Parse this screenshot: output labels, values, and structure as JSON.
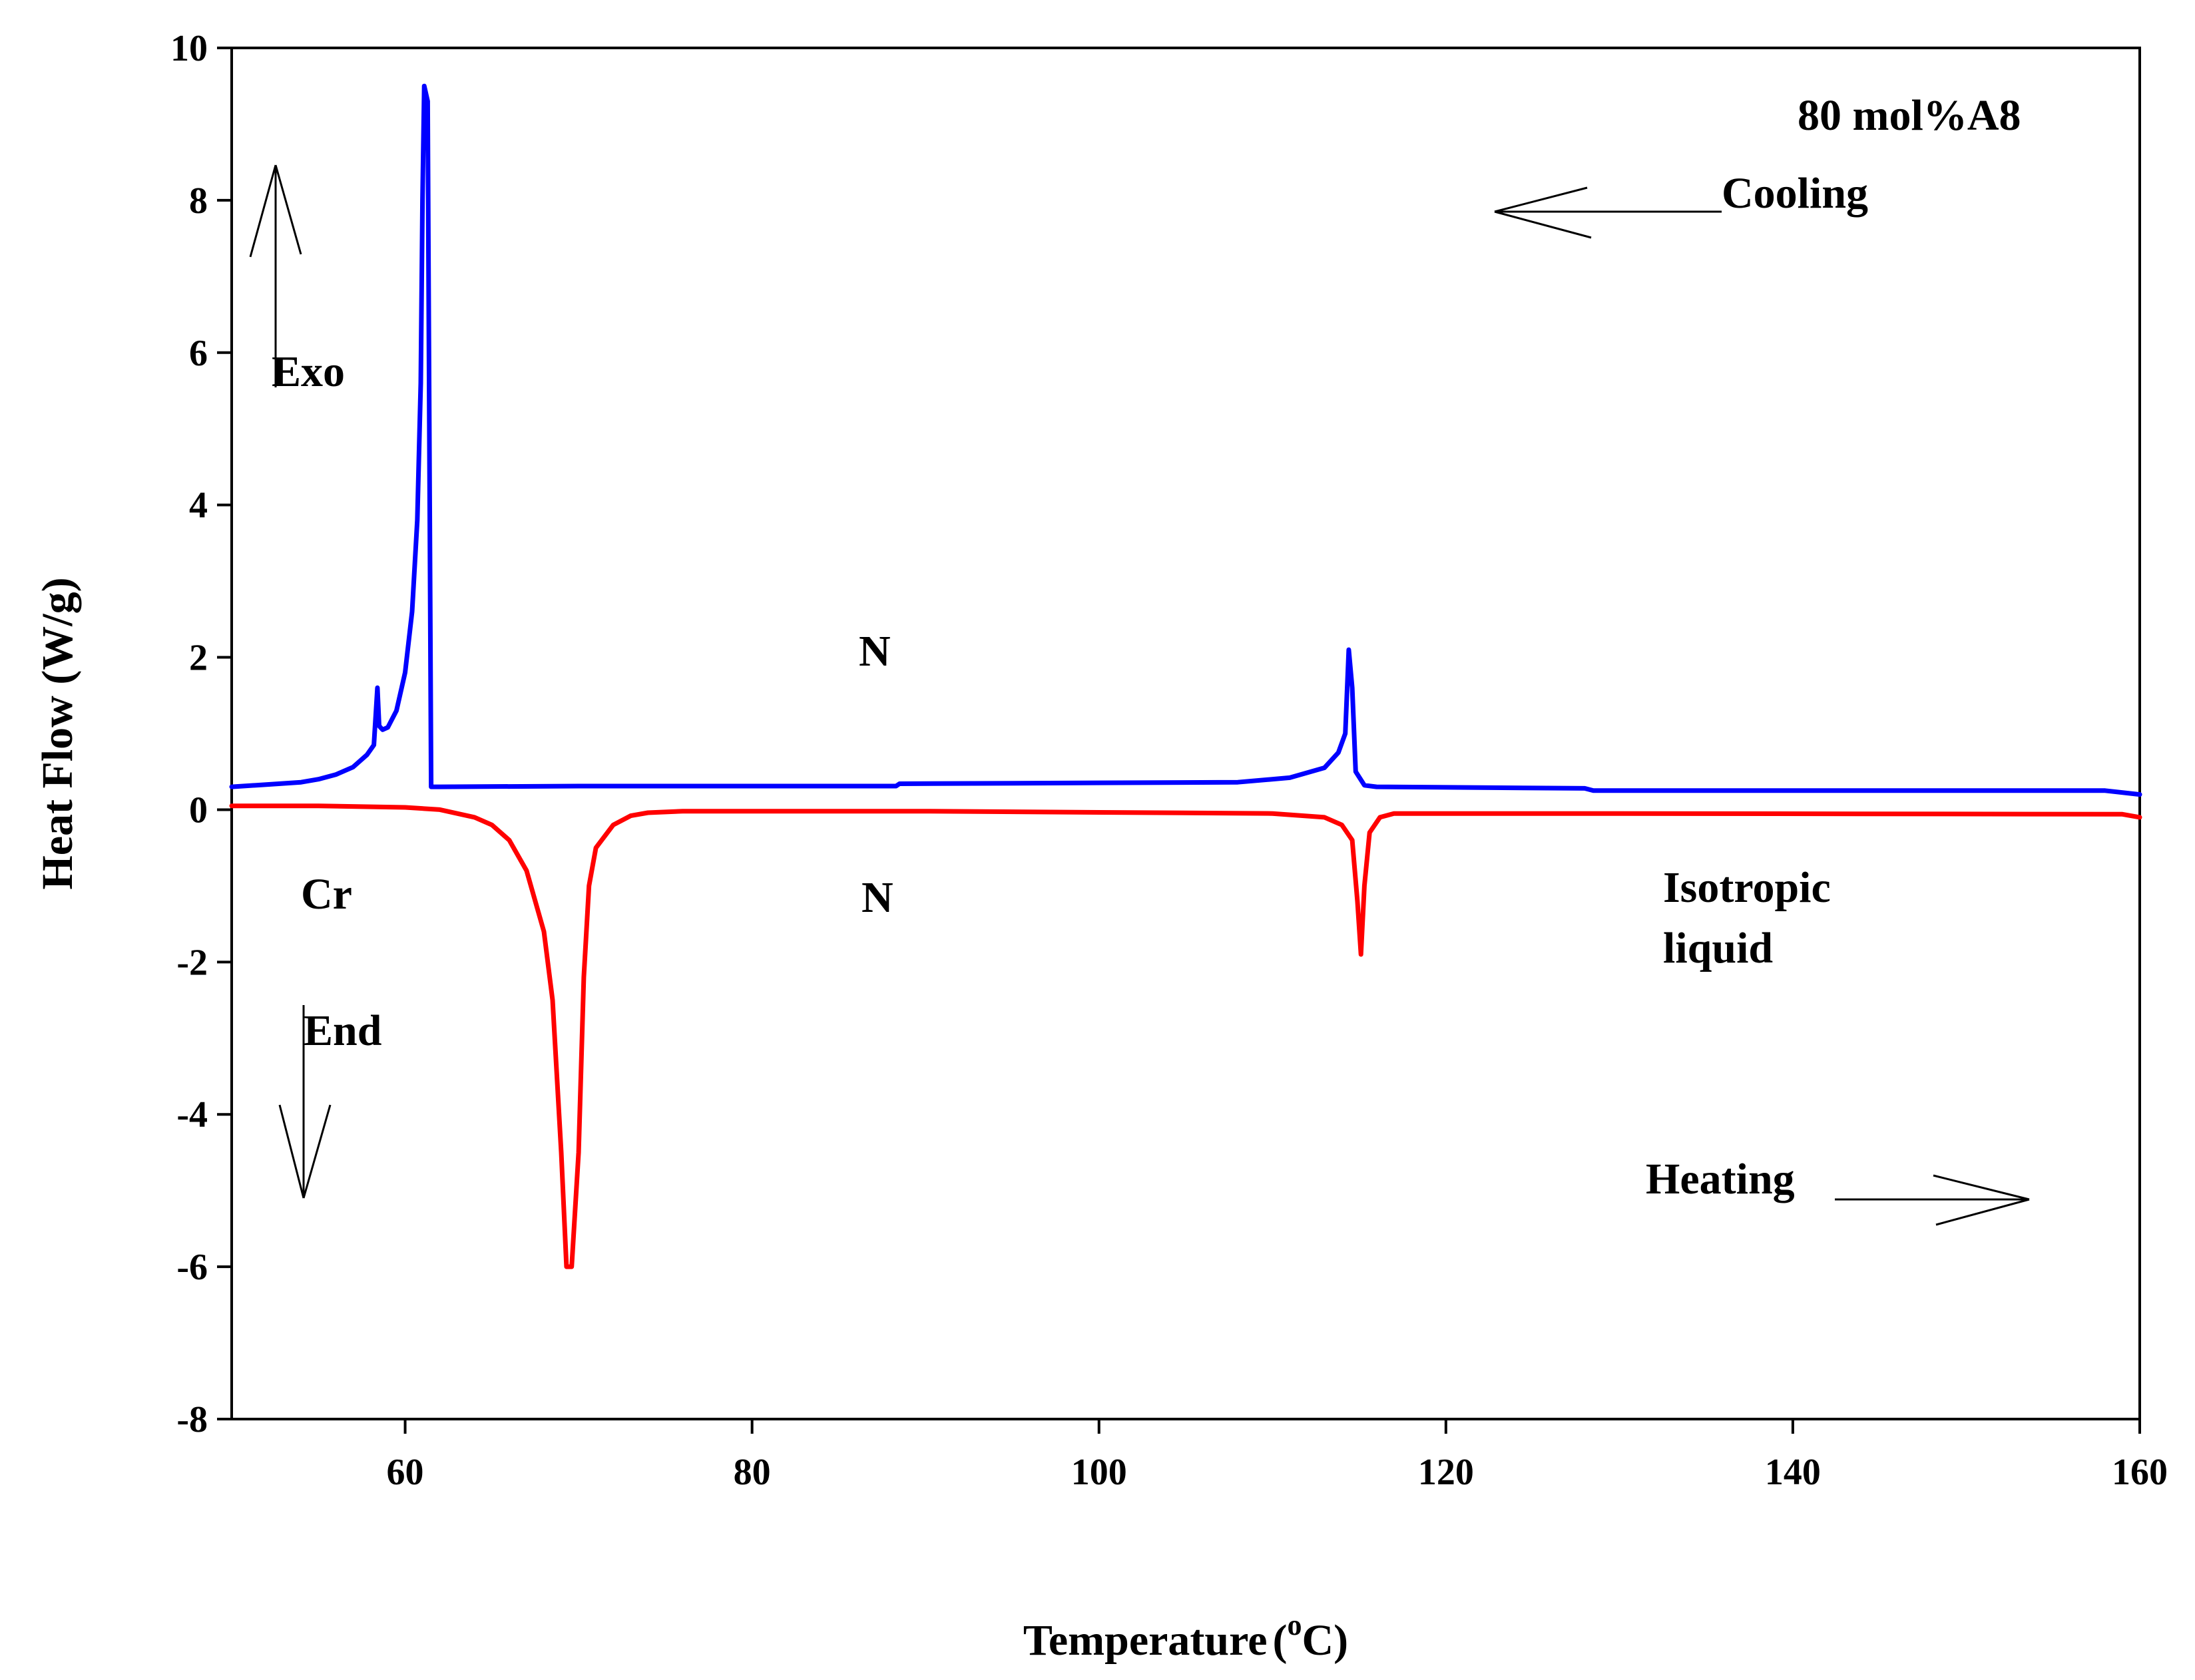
{
  "chart_data": {
    "type": "line",
    "title": "",
    "xlabel": "Temperature",
    "xlabel_unit_prefix": "(",
    "xlabel_unit_sup": "o",
    "xlabel_unit_rest": "C)",
    "ylabel": "Heat Flow (W/g)",
    "xlim": [
      50,
      160
    ],
    "ylim": [
      -8,
      10
    ],
    "xticks": [
      60,
      80,
      100,
      120,
      140,
      160
    ],
    "yticks": [
      -8,
      -6,
      -4,
      -2,
      0,
      2,
      4,
      6,
      8,
      10
    ],
    "grid": false,
    "series": [
      {
        "name": "Cooling",
        "color": "#0000ff",
        "x": [
          50,
          52,
          54,
          55,
          56,
          57,
          57.8,
          58.2,
          58.4,
          58.5,
          58.7,
          59,
          59.5,
          60,
          60.4,
          60.7,
          60.9,
          61.0,
          61.1,
          61.3,
          61.5,
          62,
          70,
          88.3,
          88.5,
          108,
          111,
          113,
          113.8,
          114.2,
          114.4,
          114.6,
          114.8,
          115.3,
          116,
          128,
          128.5,
          158,
          160
        ],
        "y": [
          0.3,
          0.33,
          0.36,
          0.4,
          0.46,
          0.56,
          0.72,
          0.85,
          1.6,
          1.1,
          1.05,
          1.08,
          1.3,
          1.8,
          2.6,
          3.8,
          5.6,
          8.0,
          9.5,
          9.3,
          0.3,
          0.3,
          0.31,
          0.31,
          0.34,
          0.36,
          0.42,
          0.55,
          0.75,
          1.0,
          2.1,
          1.6,
          0.5,
          0.32,
          0.3,
          0.28,
          0.25,
          0.25,
          0.2
        ]
      },
      {
        "name": "Heating",
        "color": "#ff0000",
        "x": [
          50,
          55,
          60,
          62,
          64,
          65,
          66,
          67,
          68,
          68.5,
          69,
          69.3,
          69.6,
          70,
          70.3,
          70.6,
          71,
          72,
          73,
          74,
          76,
          90,
          110,
          113,
          114,
          114.6,
          114.9,
          115.1,
          115.3,
          115.6,
          116.2,
          117,
          130,
          159,
          160
        ],
        "y": [
          0.05,
          0.05,
          0.03,
          0.0,
          -0.1,
          -0.2,
          -0.4,
          -0.8,
          -1.6,
          -2.5,
          -4.5,
          -6.0,
          -6.0,
          -4.5,
          -2.2,
          -1.0,
          -0.5,
          -0.2,
          -0.08,
          -0.04,
          -0.02,
          -0.02,
          -0.05,
          -0.1,
          -0.2,
          -0.4,
          -1.2,
          -1.9,
          -1.0,
          -0.3,
          -0.1,
          -0.05,
          -0.05,
          -0.06,
          -0.1
        ]
      }
    ],
    "annotations": {
      "sample": "80 mol%A8",
      "cooling": "Cooling",
      "heating": "Heating",
      "exo": "Exo",
      "end": "End",
      "n_upper": "N",
      "n_lower": "N",
      "cr": "Cr",
      "iso_line1": "Isotropic",
      "iso_line2": "liquid"
    }
  }
}
